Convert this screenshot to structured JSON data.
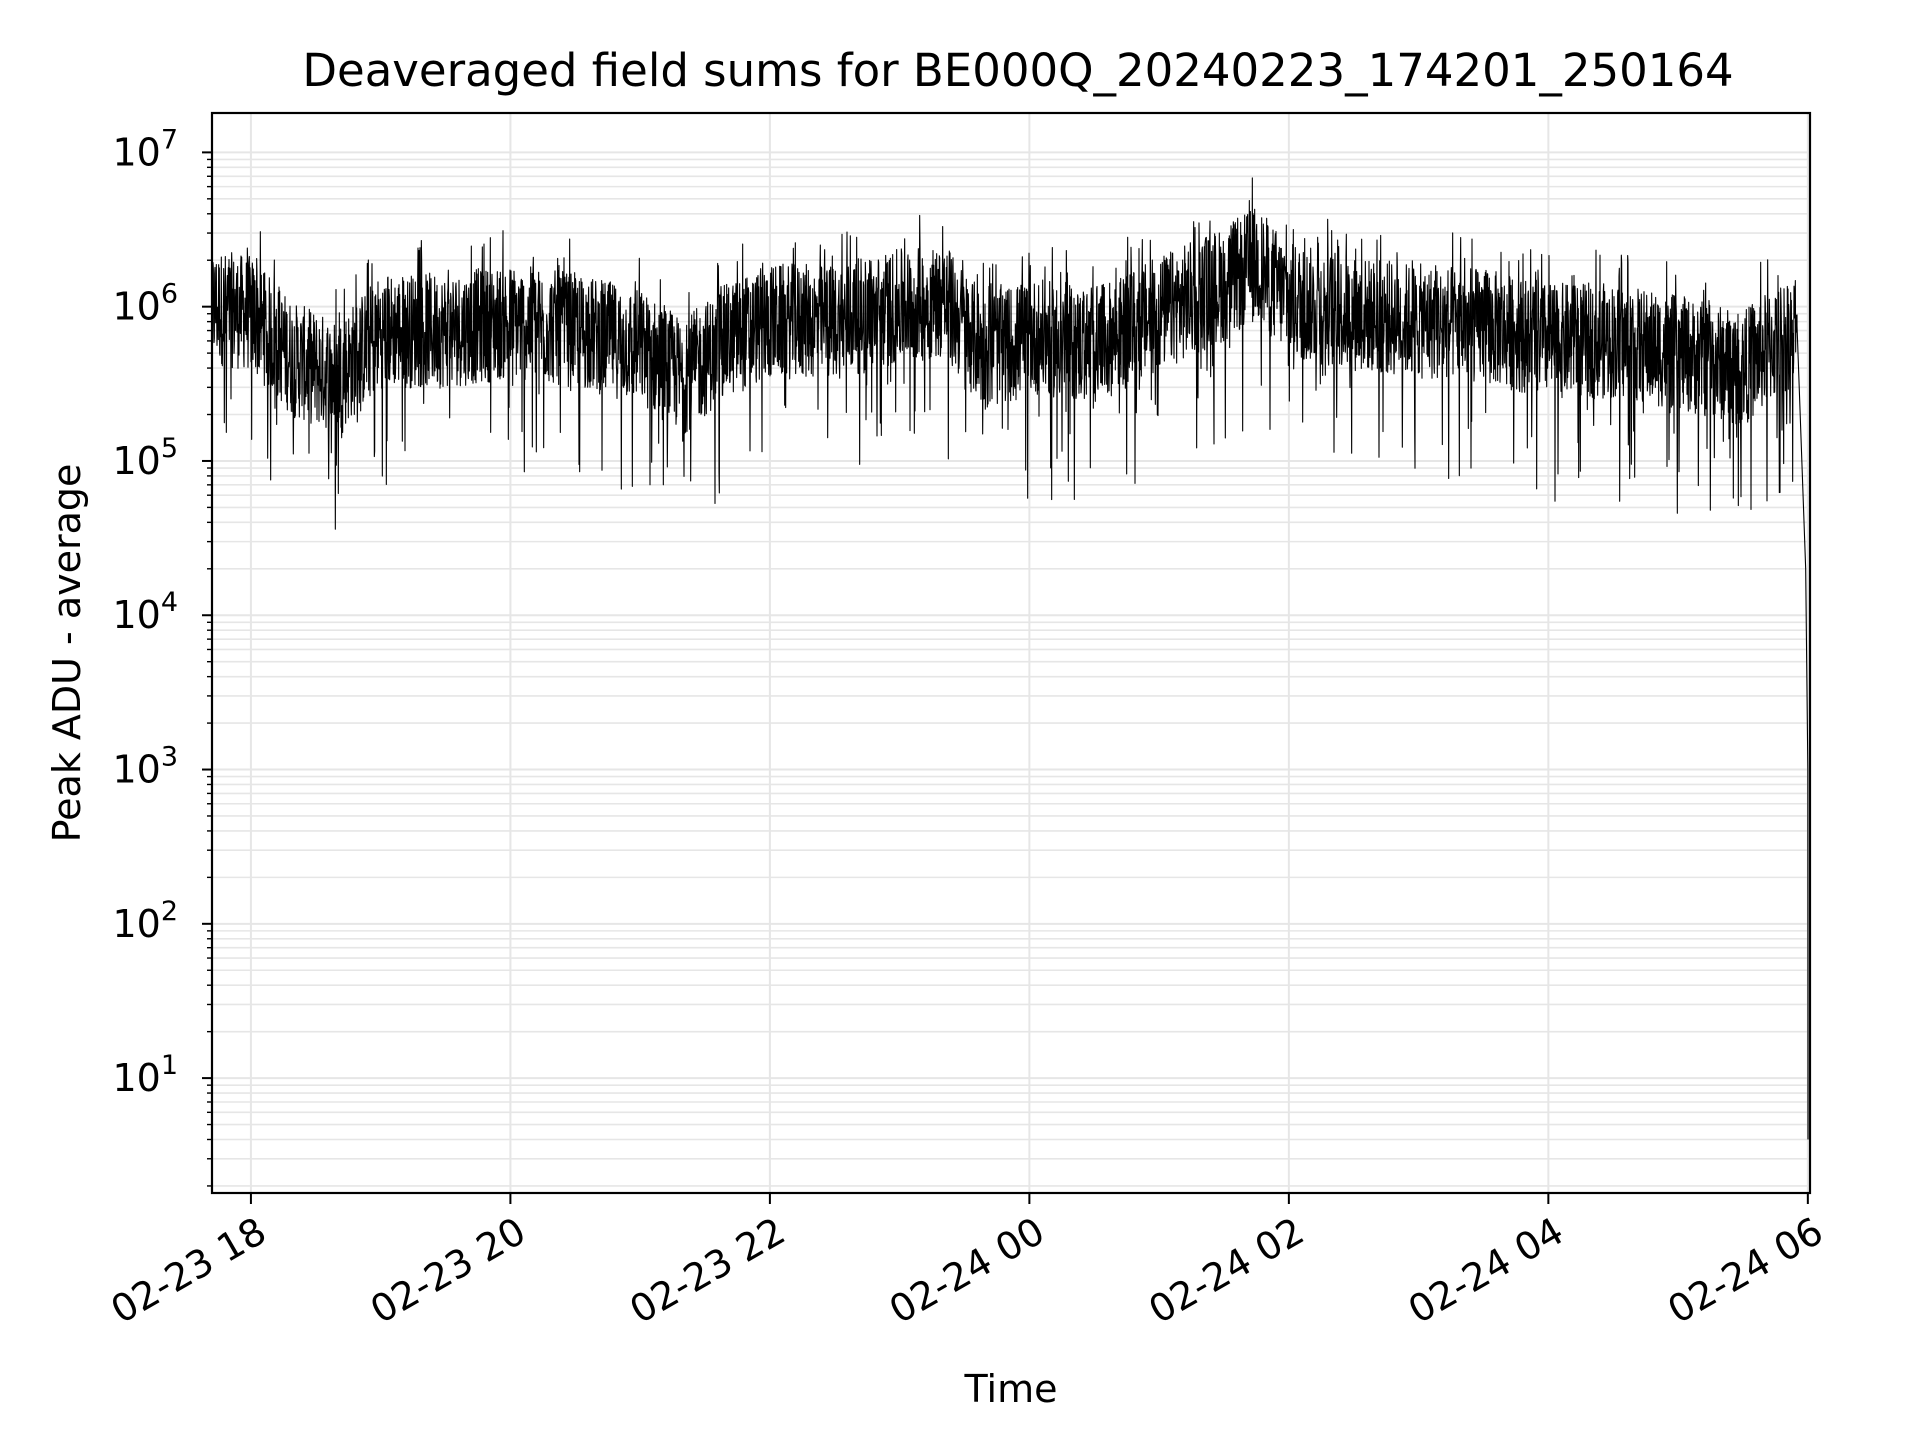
{
  "chart_data": {
    "type": "line",
    "title": "Deaveraged field sums for BE000Q_20240223_174201_250164",
    "xlabel": "Time",
    "ylabel": "Peak ADU - average",
    "x_tick_labels": [
      "02-23 18",
      "02-23 20",
      "02-23 22",
      "02-24 00",
      "02-24 02",
      "02-24 04",
      "02-24 06"
    ],
    "y_tick_labels": [
      {
        "base": "10",
        "exp": "1"
      },
      {
        "base": "10",
        "exp": "2"
      },
      {
        "base": "10",
        "exp": "3"
      },
      {
        "base": "10",
        "exp": "4"
      },
      {
        "base": "10",
        "exp": "5"
      },
      {
        "base": "10",
        "exp": "6"
      },
      {
        "base": "10",
        "exp": "7"
      }
    ],
    "y_scale": "log",
    "xlim": [
      "2024-02-23 17:42",
      "2024-02-24 06:01"
    ],
    "ylim": [
      1.8,
      18000000
    ],
    "grid": true,
    "line_color": "#000000",
    "grid_color": "#e6e6e6",
    "series": [
      {
        "x": [
          "2024-02-23 17:42",
          "2024-02-23 18:00",
          "2024-02-23 18:20",
          "2024-02-23 18:40",
          "2024-02-23 19:00",
          "2024-02-23 19:30",
          "2024-02-23 20:00",
          "2024-02-23 20:30",
          "2024-02-23 21:00",
          "2024-02-23 21:20",
          "2024-02-23 21:40",
          "2024-02-23 22:00",
          "2024-02-23 22:30",
          "2024-02-23 23:00",
          "2024-02-23 23:20",
          "2024-02-23 23:40",
          "2024-02-24 00:00",
          "2024-02-24 00:30",
          "2024-02-24 01:00",
          "2024-02-24 01:30",
          "2024-02-24 01:45",
          "2024-02-24 02:00",
          "2024-02-24 02:30",
          "2024-02-24 03:00",
          "2024-02-24 03:30",
          "2024-02-24 04:00",
          "2024-02-24 04:30",
          "2024-02-24 05:00",
          "2024-02-24 05:30",
          "2024-02-24 05:55",
          "2024-02-24 05:59",
          "2024-02-24 06:00",
          "2024-02-24 06:00:30"
        ],
        "y": [
          1000000,
          900000,
          450000,
          350000,
          700000,
          700000,
          800000,
          700000,
          550000,
          350000,
          600000,
          800000,
          800000,
          1000000,
          1100000,
          500000,
          650000,
          550000,
          900000,
          1400000,
          1900000,
          1100000,
          900000,
          800000,
          750000,
          600000,
          600000,
          500000,
          400000,
          750000,
          20000,
          1000,
          4
        ]
      }
    ]
  }
}
